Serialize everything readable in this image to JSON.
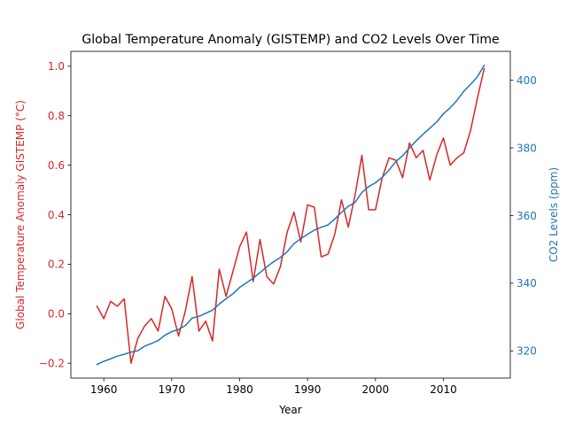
{
  "chart_data": {
    "type": "line",
    "title": "Global Temperature Anomaly (GISTEMP) and CO2 Levels Over Time",
    "xlabel": "Year",
    "ylabel_left": "Global Temperature Anomaly GISTEMP (°C)",
    "ylabel_right": "CO2 Levels (ppm)",
    "xlim": [
      1955.15,
      2019.85
    ],
    "ylim_left": [
      -0.26,
      1.06
    ],
    "ylim_right": [
      311.95,
      408.55
    ],
    "xticks": [
      1960,
      1970,
      1980,
      1990,
      2000,
      2010
    ],
    "yticks_left": [
      -0.2,
      0.0,
      0.2,
      0.4,
      0.6,
      0.8,
      1.0
    ],
    "yticks_left_labels": [
      "−0.2",
      "0.0",
      "0.2",
      "0.4",
      "0.6",
      "0.8",
      "1.0"
    ],
    "yticks_right": [
      320,
      340,
      360,
      380,
      400
    ],
    "grid": false,
    "legend": "none",
    "colors": {
      "temperature": "#d62728",
      "co2": "#1f77b4",
      "axis": "#000000"
    },
    "x": [
      1959,
      1960,
      1961,
      1962,
      1963,
      1964,
      1965,
      1966,
      1967,
      1968,
      1969,
      1970,
      1971,
      1972,
      1973,
      1974,
      1975,
      1976,
      1977,
      1978,
      1979,
      1980,
      1981,
      1982,
      1983,
      1984,
      1985,
      1986,
      1987,
      1988,
      1989,
      1990,
      1991,
      1992,
      1993,
      1994,
      1995,
      1996,
      1997,
      1998,
      1999,
      2000,
      2001,
      2002,
      2003,
      2004,
      2005,
      2006,
      2007,
      2008,
      2009,
      2010,
      2011,
      2012,
      2013,
      2014,
      2015,
      2016
    ],
    "series": [
      {
        "axis": "left",
        "values": [
          0.03,
          -0.02,
          0.05,
          0.03,
          0.06,
          -0.2,
          -0.1,
          -0.05,
          -0.02,
          -0.07,
          0.07,
          0.02,
          -0.09,
          0.01,
          0.15,
          -0.07,
          -0.03,
          -0.11,
          0.18,
          0.07,
          0.17,
          0.27,
          0.33,
          0.13,
          0.3,
          0.15,
          0.12,
          0.19,
          0.33,
          0.41,
          0.29,
          0.44,
          0.43,
          0.23,
          0.24,
          0.32,
          0.46,
          0.35,
          0.48,
          0.64,
          0.42,
          0.42,
          0.55,
          0.63,
          0.62,
          0.55,
          0.69,
          0.63,
          0.66,
          0.54,
          0.64,
          0.71,
          0.6,
          0.63,
          0.65,
          0.74,
          0.87,
          0.99
        ]
      },
      {
        "axis": "right",
        "values": [
          315.98,
          316.91,
          317.64,
          318.45,
          318.99,
          319.62,
          320.04,
          321.38,
          322.16,
          323.04,
          324.62,
          325.68,
          326.32,
          327.46,
          329.68,
          330.19,
          331.12,
          332.03,
          333.84,
          335.41,
          336.84,
          338.76,
          340.12,
          341.48,
          343.15,
          344.85,
          346.35,
          347.61,
          349.31,
          351.69,
          353.2,
          354.45,
          355.7,
          356.54,
          357.21,
          358.96,
          360.97,
          362.74,
          363.88,
          366.84,
          368.54,
          369.71,
          371.32,
          373.45,
          375.98,
          377.7,
          379.98,
          382.09,
          384.02,
          385.83,
          387.64,
          390.1,
          391.85,
          394.06,
          396.74,
          398.81,
          401.01,
          404.41
        ]
      }
    ]
  }
}
